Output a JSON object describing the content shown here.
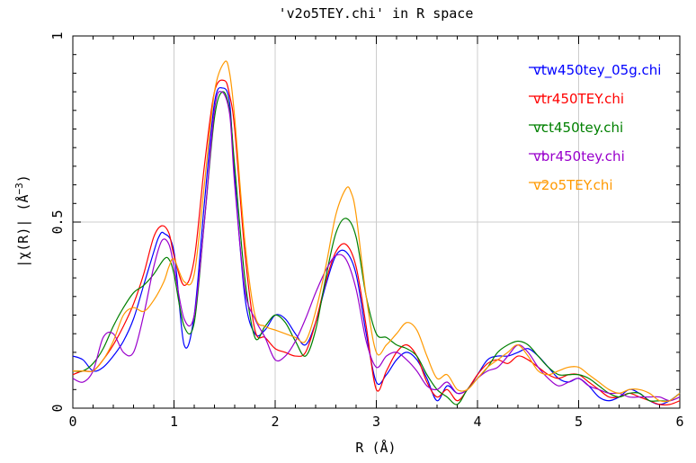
{
  "chart_data": {
    "type": "line",
    "title": "'v2o5TEY.chi' in R space",
    "xlabel": "R (Å)",
    "ylabel": "|χ(R)| (Å",
    "ylabel_sup": "−3",
    "ylabel_close": ")",
    "xlim": [
      0,
      6
    ],
    "ylim": [
      0,
      1
    ],
    "xticks": [
      0,
      1,
      2,
      3,
      4,
      5,
      6
    ],
    "xtick_labels": [
      "0",
      "1",
      "2",
      "3",
      "4",
      "5",
      "6"
    ],
    "yticks": [
      0,
      0.5,
      1
    ],
    "ytick_labels": [
      "0",
      "0.5",
      "1"
    ],
    "grid": true,
    "legend_position": "top-right",
    "series": [
      {
        "name": "vtw450tey_05g.chi",
        "color": "#0000ff",
        "x": [
          0,
          0.1,
          0.2,
          0.3,
          0.4,
          0.5,
          0.6,
          0.7,
          0.8,
          0.85,
          0.9,
          1.0,
          1.1,
          1.2,
          1.3,
          1.4,
          1.48,
          1.55,
          1.6,
          1.7,
          1.8,
          1.9,
          2.0,
          2.1,
          2.2,
          2.3,
          2.4,
          2.5,
          2.6,
          2.7,
          2.8,
          2.9,
          3.0,
          3.1,
          3.2,
          3.3,
          3.4,
          3.5,
          3.6,
          3.7,
          3.8,
          3.9,
          4.0,
          4.1,
          4.2,
          4.3,
          4.4,
          4.5,
          4.6,
          4.7,
          4.8,
          4.9,
          5.0,
          5.1,
          5.2,
          5.3,
          5.4,
          5.5,
          5.6,
          5.7,
          5.8,
          5.9,
          6.0
        ],
        "values": [
          0.14,
          0.13,
          0.1,
          0.11,
          0.14,
          0.18,
          0.24,
          0.33,
          0.42,
          0.46,
          0.47,
          0.42,
          0.17,
          0.25,
          0.55,
          0.82,
          0.86,
          0.82,
          0.62,
          0.3,
          0.2,
          0.21,
          0.25,
          0.24,
          0.2,
          0.17,
          0.23,
          0.33,
          0.41,
          0.42,
          0.36,
          0.2,
          0.07,
          0.09,
          0.13,
          0.15,
          0.13,
          0.08,
          0.02,
          0.06,
          0.04,
          0.05,
          0.09,
          0.13,
          0.14,
          0.14,
          0.15,
          0.16,
          0.14,
          0.11,
          0.08,
          0.07,
          0.08,
          0.06,
          0.03,
          0.02,
          0.03,
          0.05,
          0.04,
          0.02,
          0.01,
          0.02,
          0.04
        ]
      },
      {
        "name": "vtr450TEY.chi",
        "color": "#ff0000",
        "x": [
          0,
          0.1,
          0.2,
          0.3,
          0.4,
          0.5,
          0.6,
          0.7,
          0.8,
          0.88,
          0.95,
          1.0,
          1.1,
          1.2,
          1.3,
          1.4,
          1.5,
          1.55,
          1.6,
          1.7,
          1.8,
          1.9,
          2.0,
          2.1,
          2.2,
          2.3,
          2.4,
          2.5,
          2.6,
          2.7,
          2.8,
          2.9,
          3.0,
          3.1,
          3.2,
          3.3,
          3.4,
          3.5,
          3.6,
          3.7,
          3.8,
          3.9,
          4.0,
          4.1,
          4.2,
          4.3,
          4.4,
          4.5,
          4.6,
          4.7,
          4.8,
          4.9,
          5.0,
          5.1,
          5.2,
          5.3,
          5.4,
          5.5,
          5.6,
          5.7,
          5.8,
          5.9,
          6.0
        ],
        "values": [
          0.09,
          0.1,
          0.1,
          0.13,
          0.17,
          0.22,
          0.28,
          0.36,
          0.46,
          0.49,
          0.47,
          0.41,
          0.33,
          0.4,
          0.65,
          0.85,
          0.88,
          0.84,
          0.75,
          0.42,
          0.21,
          0.19,
          0.16,
          0.15,
          0.14,
          0.15,
          0.23,
          0.34,
          0.42,
          0.44,
          0.38,
          0.22,
          0.05,
          0.1,
          0.15,
          0.17,
          0.14,
          0.07,
          0.03,
          0.05,
          0.02,
          0.05,
          0.09,
          0.12,
          0.13,
          0.12,
          0.14,
          0.13,
          0.11,
          0.09,
          0.08,
          0.09,
          0.09,
          0.07,
          0.05,
          0.03,
          0.03,
          0.04,
          0.03,
          0.02,
          0.01,
          0.01,
          0.02
        ]
      },
      {
        "name": "vct450tey.chi",
        "color": "#008000",
        "x": [
          0,
          0.1,
          0.2,
          0.3,
          0.4,
          0.5,
          0.6,
          0.7,
          0.8,
          0.9,
          0.95,
          1.0,
          1.1,
          1.2,
          1.3,
          1.4,
          1.48,
          1.55,
          1.6,
          1.7,
          1.8,
          1.9,
          2.0,
          2.1,
          2.2,
          2.3,
          2.4,
          2.5,
          2.6,
          2.7,
          2.8,
          2.9,
          3.0,
          3.1,
          3.2,
          3.3,
          3.4,
          3.5,
          3.6,
          3.7,
          3.8,
          3.9,
          4.0,
          4.1,
          4.2,
          4.3,
          4.4,
          4.5,
          4.6,
          4.7,
          4.8,
          4.9,
          5.0,
          5.1,
          5.2,
          5.3,
          5.4,
          5.5,
          5.6,
          5.7,
          5.8,
          5.9,
          6.0
        ],
        "values": [
          0.1,
          0.1,
          0.12,
          0.16,
          0.22,
          0.27,
          0.31,
          0.33,
          0.36,
          0.4,
          0.4,
          0.36,
          0.22,
          0.23,
          0.5,
          0.78,
          0.85,
          0.8,
          0.65,
          0.35,
          0.19,
          0.22,
          0.25,
          0.23,
          0.18,
          0.14,
          0.21,
          0.35,
          0.47,
          0.51,
          0.46,
          0.3,
          0.2,
          0.19,
          0.17,
          0.16,
          0.14,
          0.09,
          0.05,
          0.03,
          0.01,
          0.05,
          0.08,
          0.11,
          0.15,
          0.17,
          0.18,
          0.17,
          0.14,
          0.11,
          0.09,
          0.09,
          0.09,
          0.08,
          0.06,
          0.04,
          0.03,
          0.04,
          0.04,
          0.02,
          0.02,
          0.02,
          0.04
        ]
      },
      {
        "name": "vbr450tey.chi",
        "color": "#9900cc",
        "x": [
          0,
          0.1,
          0.2,
          0.3,
          0.4,
          0.5,
          0.6,
          0.7,
          0.8,
          0.88,
          0.95,
          1.0,
          1.1,
          1.2,
          1.3,
          1.4,
          1.47,
          1.55,
          1.6,
          1.7,
          1.8,
          1.9,
          2.0,
          2.1,
          2.2,
          2.3,
          2.4,
          2.5,
          2.6,
          2.7,
          2.8,
          2.9,
          3.0,
          3.1,
          3.2,
          3.3,
          3.4,
          3.5,
          3.6,
          3.7,
          3.8,
          3.9,
          4.0,
          4.1,
          4.2,
          4.3,
          4.4,
          4.5,
          4.6,
          4.7,
          4.8,
          4.9,
          5.0,
          5.1,
          5.2,
          5.3,
          5.4,
          5.5,
          5.6,
          5.7,
          5.8,
          5.9,
          6.0
        ],
        "values": [
          0.08,
          0.07,
          0.1,
          0.19,
          0.2,
          0.15,
          0.15,
          0.25,
          0.38,
          0.45,
          0.44,
          0.38,
          0.24,
          0.25,
          0.5,
          0.8,
          0.85,
          0.79,
          0.6,
          0.32,
          0.24,
          0.19,
          0.13,
          0.14,
          0.18,
          0.24,
          0.31,
          0.37,
          0.41,
          0.4,
          0.32,
          0.18,
          0.11,
          0.14,
          0.15,
          0.13,
          0.1,
          0.06,
          0.05,
          0.07,
          0.04,
          0.05,
          0.08,
          0.1,
          0.11,
          0.14,
          0.17,
          0.15,
          0.11,
          0.08,
          0.06,
          0.07,
          0.08,
          0.06,
          0.05,
          0.04,
          0.04,
          0.03,
          0.03,
          0.03,
          0.03,
          0.02,
          0.03
        ]
      },
      {
        "name": "v2o5TEY.chi",
        "color": "#ff9900",
        "x": [
          0,
          0.1,
          0.2,
          0.3,
          0.4,
          0.5,
          0.6,
          0.7,
          0.8,
          0.9,
          0.95,
          1.0,
          1.1,
          1.2,
          1.3,
          1.4,
          1.5,
          1.55,
          1.6,
          1.7,
          1.8,
          1.9,
          2.0,
          2.1,
          2.2,
          2.3,
          2.4,
          2.5,
          2.6,
          2.7,
          2.75,
          2.8,
          2.9,
          3.0,
          3.1,
          3.2,
          3.3,
          3.4,
          3.5,
          3.6,
          3.7,
          3.8,
          3.9,
          4.0,
          4.1,
          4.2,
          4.3,
          4.4,
          4.5,
          4.6,
          4.7,
          4.8,
          4.9,
          5.0,
          5.1,
          5.2,
          5.3,
          5.4,
          5.5,
          5.6,
          5.7,
          5.8,
          5.9,
          6.0
        ],
        "values": [
          0.1,
          0.1,
          0.1,
          0.13,
          0.18,
          0.25,
          0.27,
          0.26,
          0.29,
          0.34,
          0.38,
          0.4,
          0.34,
          0.36,
          0.6,
          0.85,
          0.93,
          0.9,
          0.78,
          0.45,
          0.25,
          0.22,
          0.21,
          0.2,
          0.19,
          0.18,
          0.26,
          0.38,
          0.52,
          0.59,
          0.58,
          0.52,
          0.3,
          0.15,
          0.17,
          0.2,
          0.23,
          0.21,
          0.14,
          0.08,
          0.09,
          0.05,
          0.05,
          0.08,
          0.11,
          0.13,
          0.15,
          0.17,
          0.14,
          0.1,
          0.09,
          0.1,
          0.11,
          0.11,
          0.09,
          0.07,
          0.05,
          0.04,
          0.05,
          0.05,
          0.04,
          0.02,
          0.02,
          0.04
        ]
      }
    ]
  }
}
